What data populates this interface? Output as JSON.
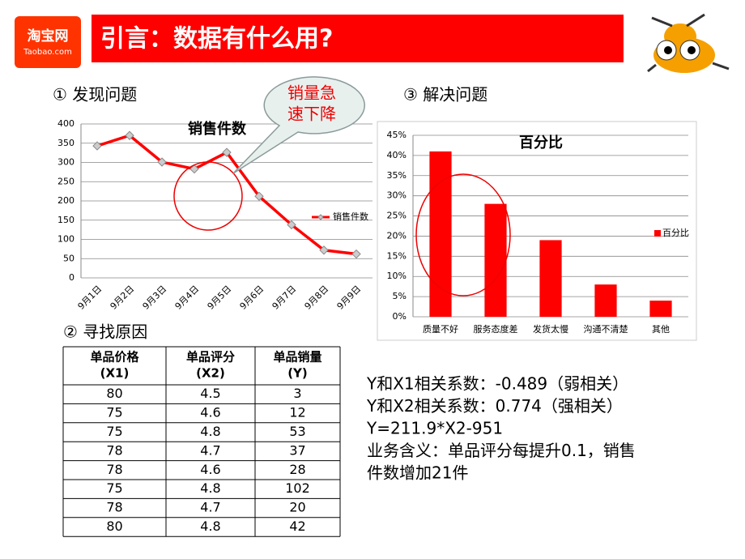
{
  "header": {
    "logo_cn": "淘宝网",
    "logo_en": "Taobao.com",
    "title": "引言：数据有什么用?"
  },
  "sections": [
    "① 发现问题",
    "② 寻找原因",
    "③ 解决问题"
  ],
  "callout": [
    "销量急",
    "速下降"
  ],
  "chart_data": [
    {
      "type": "line",
      "title": "销售件数",
      "categories": [
        "9月1日",
        "9月2日",
        "9月3日",
        "9月4日",
        "9月5日",
        "9月6日",
        "9月7日",
        "9月8日",
        "9月9日"
      ],
      "series": [
        {
          "name": "销售件数",
          "color": "#ff0000",
          "values": [
            343,
            370,
            301,
            283,
            326,
            212,
            138,
            72,
            62
          ]
        }
      ],
      "ylim": [
        0,
        400
      ],
      "yticks": [
        0,
        50,
        100,
        150,
        200,
        250,
        300,
        350,
        400
      ],
      "grid": true,
      "legend": "right"
    },
    {
      "type": "bar",
      "title": "百分比",
      "categories": [
        "质量不好",
        "服务态度差",
        "发货太慢",
        "沟通不清楚",
        "其他"
      ],
      "series": [
        {
          "name": "百分比",
          "color": "#ff0000",
          "values": [
            41,
            28,
            19,
            8,
            4
          ]
        }
      ],
      "ylim": [
        0,
        45
      ],
      "yticks": [
        {
          "value": 0,
          "label": "0%"
        },
        {
          "value": 5,
          "label": "5%"
        },
        {
          "value": 10,
          "label": "10%"
        },
        {
          "value": 15,
          "label": "15%"
        },
        {
          "value": 20,
          "label": "20%"
        },
        {
          "value": 25,
          "label": "25%"
        },
        {
          "value": 30,
          "label": "30%"
        },
        {
          "value": 35,
          "label": "35%"
        },
        {
          "value": 40,
          "label": "40%"
        },
        {
          "value": 45,
          "label": "45%"
        }
      ],
      "grid": true,
      "legend": "right"
    }
  ],
  "table": {
    "header": [
      [
        "单品价格",
        "(X1)"
      ],
      [
        "单品评分",
        "(X2)"
      ],
      [
        "单品销量",
        "(Y)"
      ]
    ],
    "rows": [
      [
        80,
        4.5,
        3
      ],
      [
        75,
        4.6,
        12
      ],
      [
        75,
        4.8,
        53
      ],
      [
        78,
        4.7,
        37
      ],
      [
        78,
        4.6,
        28
      ],
      [
        75,
        4.8,
        102
      ],
      [
        78,
        4.7,
        20
      ],
      [
        80,
        4.8,
        42
      ]
    ]
  },
  "analysis": [
    "Y和X1相关系数：-0.489（弱相关）",
    "Y和X2相关系数：0.774（强相关）",
    "Y=211.9*X2-951",
    "业务含义：单品评分每提升0.1，销售",
    "件数增加21件"
  ]
}
